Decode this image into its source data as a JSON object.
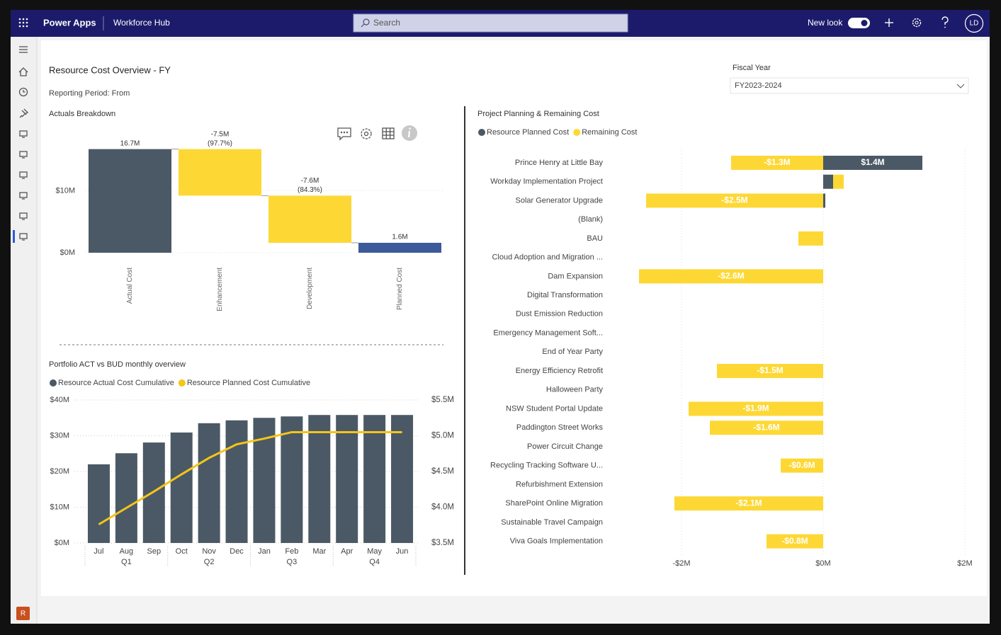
{
  "app": {
    "brand": "Power Apps",
    "app_name": "Workforce Hub",
    "search_placeholder": "Search",
    "new_look": "New look",
    "user_initials": "LD",
    "env_initial": "R"
  },
  "page": {
    "title": "Resource Cost Overview - FY",
    "reporting_period": "Reporting Period: From",
    "filter_label": "Fiscal Year",
    "filter_value": "FY2023-2024"
  },
  "chart_data": [
    {
      "type": "waterfall",
      "title": "Actuals Breakdown",
      "categories": [
        "Actual Cost",
        "Enhancement",
        "Development",
        "Planned Cost"
      ],
      "values": [
        16.7,
        -7.5,
        -7.6,
        1.6
      ],
      "value_labels": [
        "16.7M",
        "-7.5M",
        "-7.6M",
        "1.6M"
      ],
      "share_labels": [
        null,
        "(97.7%)",
        "(84.3%)",
        null
      ],
      "totals": [
        true,
        false,
        false,
        true
      ],
      "colors": [
        "#4b5966",
        "#fdd835",
        "#fdd835",
        "#3b5a9a"
      ],
      "ylim": [
        0,
        17
      ],
      "yticks": [
        {
          "value": 0,
          "label": "$0M"
        },
        {
          "value": 10,
          "label": "$10M"
        }
      ],
      "grid": true
    },
    {
      "type": "combo",
      "title": "Portfolio ACT vs BUD monthly overview",
      "categories": [
        "Jul",
        "Aug",
        "Sep",
        "Oct",
        "Nov",
        "Dec",
        "Jan",
        "Feb",
        "Mar",
        "Apr",
        "May",
        "Jun"
      ],
      "x_groups": [
        "Q1",
        "Q2",
        "Q3",
        "Q4"
      ],
      "series": [
        {
          "name": "Resource Actual Cost Cumulative",
          "color": "#4b5966",
          "kind": "bar",
          "values": [
            22,
            25.1,
            28.1,
            30.9,
            33.5,
            34.3,
            35,
            35.4,
            35.8,
            35.8,
            35.8,
            35.8
          ]
        },
        {
          "name": "Resource Planned Cost Cumulative",
          "color": "#f5c518",
          "kind": "line",
          "axis": "y2",
          "values": [
            3.76,
            3.99,
            4.22,
            4.46,
            4.69,
            4.88,
            4.96,
            5.05,
            5.05,
            5.05,
            5.05,
            5.05
          ]
        }
      ],
      "ylim": [
        0,
        40
      ],
      "yticks": [
        {
          "value": 0,
          "label": "$0M"
        },
        {
          "value": 10,
          "label": "$10M"
        },
        {
          "value": 20,
          "label": "$20M"
        },
        {
          "value": 30,
          "label": "$30M"
        },
        {
          "value": 40,
          "label": "$40M"
        }
      ],
      "y2lim": [
        3.5,
        5.5
      ],
      "y2ticks": [
        {
          "value": 3.5,
          "label": "$3.5M"
        },
        {
          "value": 4.0,
          "label": "$4.0M"
        },
        {
          "value": 4.5,
          "label": "$4.5M"
        },
        {
          "value": 5.0,
          "label": "$5.0M"
        },
        {
          "value": 5.5,
          "label": "$5.5M"
        }
      ],
      "grid": true
    },
    {
      "type": "bar",
      "orientation": "horizontal",
      "stacked": true,
      "title": "Project Planning & Remaining Cost",
      "categories": [
        "Prince Henry at Little Bay",
        "Workday Implementation Project",
        "Solar Generator Upgrade",
        "(Blank)",
        "BAU",
        "Cloud Adoption and Migration ...",
        "Dam Expansion",
        "Digital Transformation",
        "Dust Emission Reduction",
        "Emergency Management Soft...",
        "End of Year Party",
        "Energy Efficiency Retrofit",
        "Halloween Party",
        "NSW Student Portal Update",
        "Paddington Street Works",
        "Power Circuit Change",
        "Recycling Tracking Software U...",
        "Refurbishment Extension",
        "SharePoint Online Migration",
        "Sustainable Travel Campaign",
        "Viva Goals Implementation"
      ],
      "series": [
        {
          "name": "Resource Planned Cost",
          "color": "#4b5966",
          "values": [
            1.4,
            0.14,
            0.03,
            null,
            null,
            null,
            null,
            null,
            null,
            null,
            null,
            null,
            null,
            null,
            null,
            null,
            null,
            null,
            null,
            null,
            null
          ],
          "value_labels": [
            "$1.4M",
            null,
            null,
            null,
            null,
            null,
            null,
            null,
            null,
            null,
            null,
            null,
            null,
            null,
            null,
            null,
            null,
            null,
            null,
            null,
            null
          ]
        },
        {
          "name": "Remaining Cost",
          "color": "#fdd835",
          "values": [
            -1.3,
            0.15,
            -2.5,
            null,
            -0.35,
            null,
            -2.6,
            null,
            null,
            null,
            null,
            -1.5,
            null,
            -1.9,
            -1.6,
            null,
            -0.6,
            null,
            -2.1,
            null,
            -0.8
          ],
          "value_labels": [
            "-$1.3M",
            null,
            "-$2.5M",
            null,
            null,
            null,
            "-$2.6M",
            null,
            null,
            null,
            null,
            "-$1.5M",
            null,
            "-$1.9M",
            "-$1.6M",
            null,
            "-$0.6M",
            null,
            "-$2.1M",
            null,
            "-$0.8M"
          ]
        }
      ],
      "xlim": [
        -2.8,
        2
      ],
      "xticks": [
        {
          "value": -2,
          "label": "-$2M"
        },
        {
          "value": 0,
          "label": "$0M"
        },
        {
          "value": 2,
          "label": "$2M"
        }
      ],
      "grid": true
    }
  ]
}
